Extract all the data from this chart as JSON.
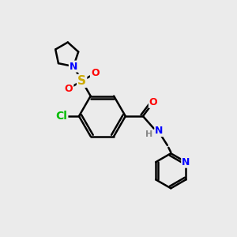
{
  "bg_color": "#ebebeb",
  "bond_color": "#000000",
  "bond_width": 1.8,
  "atom_colors": {
    "N": "#0000ff",
    "O": "#ff0000",
    "S": "#ccaa00",
    "Cl": "#00bb00",
    "H": "#888888",
    "C": "#000000"
  },
  "font_size": 9
}
